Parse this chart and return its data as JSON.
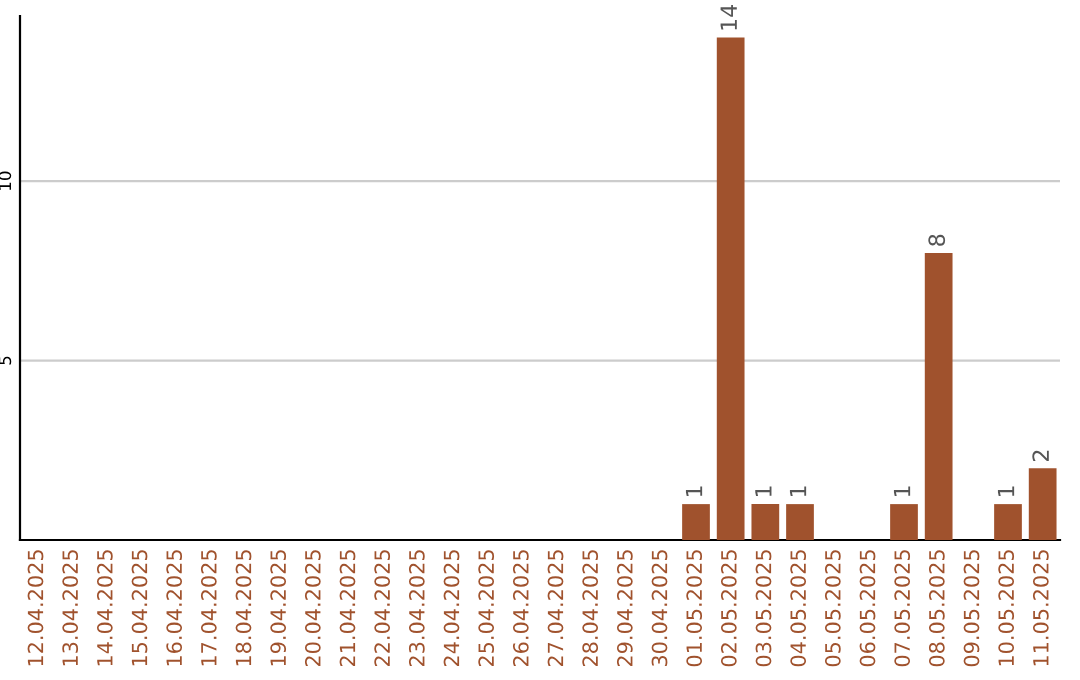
{
  "chart_data": {
    "type": "bar",
    "categories": [
      "12.04.2025",
      "13.04.2025",
      "14.04.2025",
      "15.04.2025",
      "16.04.2025",
      "17.04.2025",
      "18.04.2025",
      "19.04.2025",
      "20.04.2025",
      "21.04.2025",
      "22.04.2025",
      "23.04.2025",
      "24.04.2025",
      "25.04.2025",
      "26.04.2025",
      "27.04.2025",
      "28.04.2025",
      "29.04.2025",
      "30.04.2025",
      "01.05.2025",
      "02.05.2025",
      "03.05.2025",
      "04.05.2025",
      "05.05.2025",
      "06.05.2025",
      "07.05.2025",
      "08.05.2025",
      "09.05.2025",
      "10.05.2025",
      "11.05.2025"
    ],
    "values": [
      0,
      0,
      0,
      0,
      0,
      0,
      0,
      0,
      0,
      0,
      0,
      0,
      0,
      0,
      0,
      0,
      0,
      0,
      0,
      1,
      14,
      1,
      1,
      0,
      0,
      1,
      8,
      0,
      1,
      2
    ],
    "value_labels": [
      null,
      null,
      null,
      null,
      null,
      null,
      null,
      null,
      null,
      null,
      null,
      null,
      null,
      null,
      null,
      null,
      null,
      null,
      null,
      "1",
      "14",
      "1",
      "1",
      null,
      null,
      "1",
      "8",
      null,
      "1",
      "2"
    ],
    "color": "#a0522d",
    "ylim": [
      0,
      14.6
    ],
    "yticks": [
      5,
      10
    ],
    "grid": "y"
  }
}
